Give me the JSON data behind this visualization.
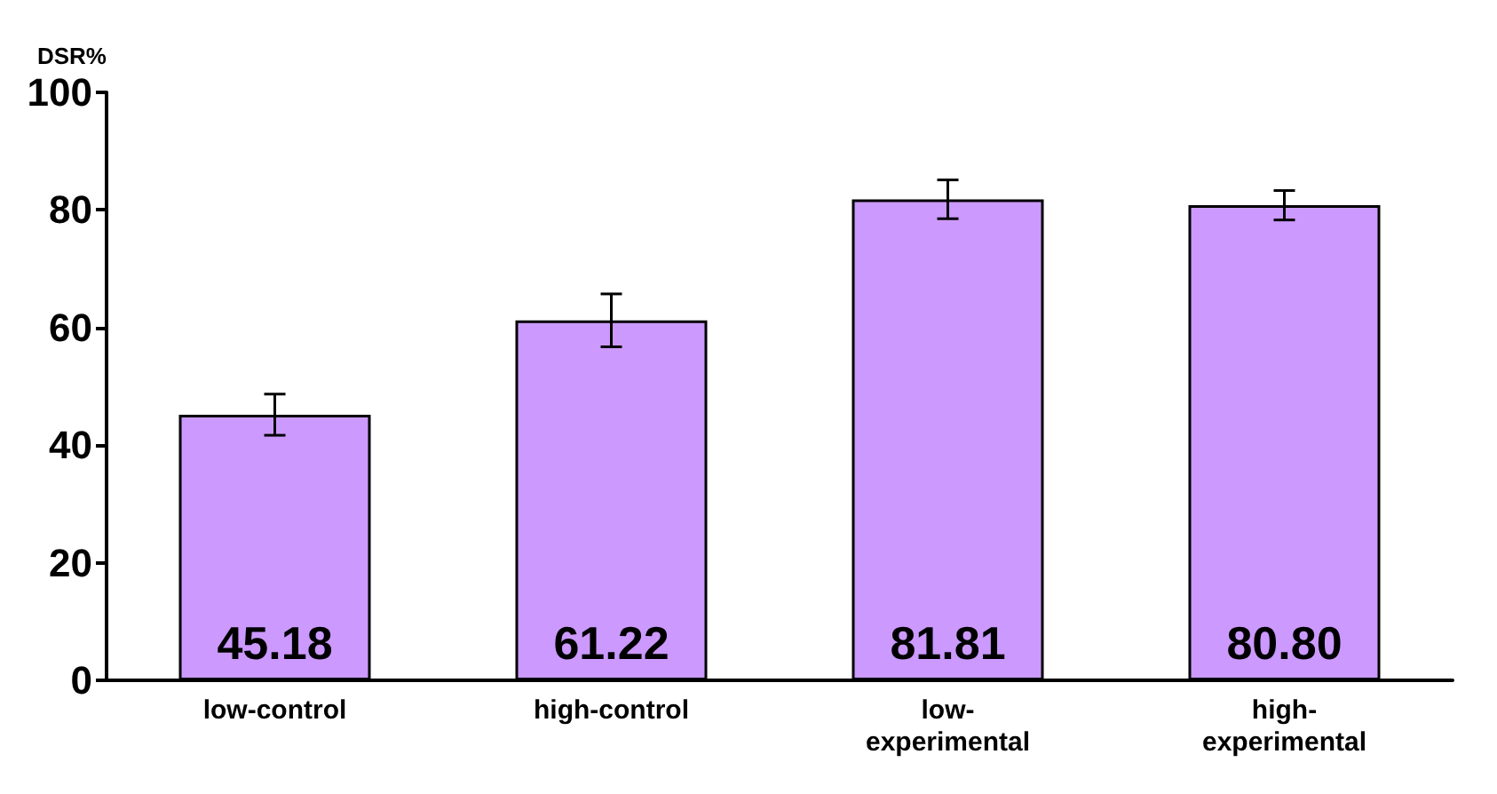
{
  "chart_data": {
    "type": "bar",
    "ylabel": "DSR%",
    "categories": [
      "low-control",
      "high-control",
      "low-experimental",
      "high-experimental"
    ],
    "values": [
      45.18,
      61.22,
      81.81,
      80.8
    ],
    "value_labels": [
      "45.18",
      "61.22",
      "81.81",
      "80.80"
    ],
    "errors": [
      3.5,
      4.5,
      3.3,
      2.5
    ],
    "color": "#cc99ff",
    "ylim": [
      0,
      100
    ],
    "yticks": [
      0,
      20,
      40,
      60,
      80,
      100
    ],
    "grid": false
  }
}
